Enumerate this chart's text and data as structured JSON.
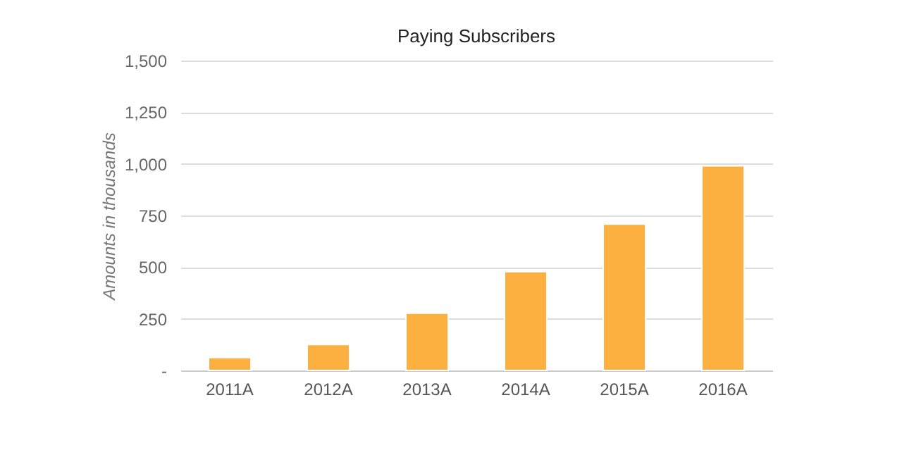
{
  "chart_data": {
    "type": "bar",
    "title": "Paying Subscribers",
    "ylabel": "Amounts in thousands",
    "categories": [
      "2011A",
      "2012A",
      "2013A",
      "2014A",
      "2015A",
      "2016A"
    ],
    "values": [
      62,
      125,
      277,
      478,
      708,
      990
    ],
    "color": "#fbb040",
    "ylim": [
      0,
      1500
    ],
    "yticks": [
      {
        "value": 0,
        "label": "-"
      },
      250,
      500,
      750,
      "1,000",
      "1,250",
      "1,500"
    ],
    "grid": "y"
  }
}
